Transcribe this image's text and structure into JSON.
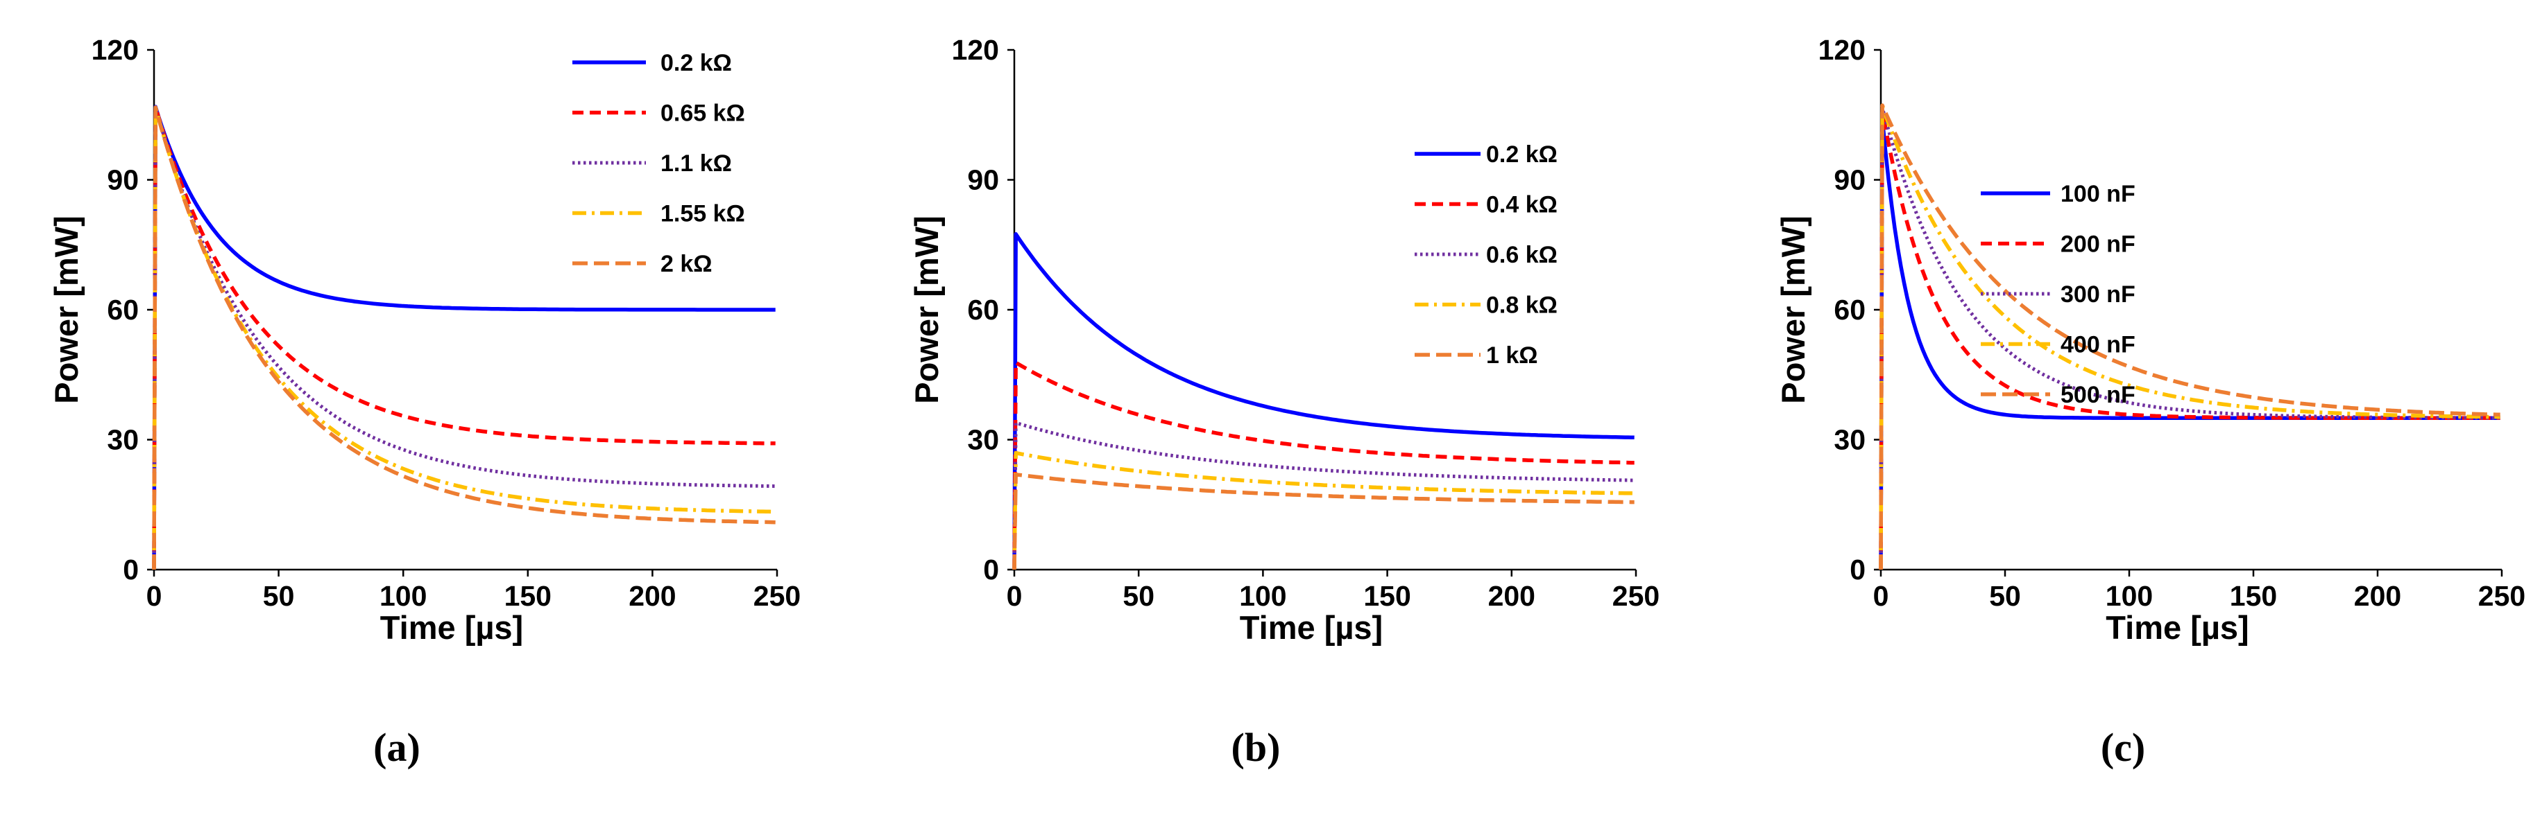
{
  "chart_data": [
    {
      "type": "line",
      "panel_label": "(a)",
      "xlabel": "Time  [µs]",
      "ylabel": "Power [mW]",
      "xlim": [
        0,
        250
      ],
      "ylim": [
        0,
        120
      ],
      "xticks": [
        "0",
        "50",
        "100",
        "150",
        "200",
        "250"
      ],
      "yticks": [
        "0",
        "30",
        "60",
        "90",
        "120"
      ],
      "grid": false,
      "legend_position": "top-right",
      "curve_model": "exponential decay from start to final with time constant tau (µs)",
      "series": [
        {
          "name": "0.2 kΩ",
          "start": 108,
          "final": 60,
          "tau": 25,
          "color": "#0000ff",
          "style": "solid"
        },
        {
          "name": "0.65 kΩ",
          "start": 108,
          "final": 29,
          "tau": 40,
          "color": "#ff0000",
          "style": "dash"
        },
        {
          "name": "1.1 kΩ",
          "start": 108,
          "final": 19,
          "tau": 43,
          "color": "#7030a0",
          "style": "dot"
        },
        {
          "name": "1.55 kΩ",
          "start": 108,
          "final": 13,
          "tau": 45,
          "color": "#ffc000",
          "style": "dashdot"
        },
        {
          "name": "2 kΩ",
          "start": 108,
          "final": 10.5,
          "tau": 46,
          "color": "#ed7d31",
          "style": "longdash"
        }
      ]
    },
    {
      "type": "line",
      "panel_label": "(b)",
      "xlabel": "Time  [µs]",
      "ylabel": "Power [mW]",
      "xlim": [
        0,
        250
      ],
      "ylim": [
        0,
        120
      ],
      "xticks": [
        "0",
        "50",
        "100",
        "150",
        "200",
        "250"
      ],
      "yticks": [
        "0",
        "30",
        "60",
        "90",
        "120"
      ],
      "grid": false,
      "legend_position": "top-right",
      "curve_model": "exponential decay from start to final with time constant tau (µs)",
      "series": [
        {
          "name": "0.2 kΩ",
          "start": 78,
          "final": 30,
          "tau": 55,
          "color": "#0000ff",
          "style": "solid"
        },
        {
          "name": "0.4 kΩ",
          "start": 48,
          "final": 24,
          "tau": 70,
          "color": "#ff0000",
          "style": "dash"
        },
        {
          "name": "0.6 kΩ",
          "start": 34,
          "final": 20,
          "tau": 80,
          "color": "#7030a0",
          "style": "dot"
        },
        {
          "name": "0.8 kΩ",
          "start": 27,
          "final": 17,
          "tau": 90,
          "color": "#ffc000",
          "style": "dashdot"
        },
        {
          "name": "1 kΩ",
          "start": 22,
          "final": 15,
          "tau": 100,
          "color": "#ed7d31",
          "style": "longdash"
        }
      ]
    },
    {
      "type": "line",
      "panel_label": "(c)",
      "xlabel": "Time  [µs]",
      "ylabel": "Power [mW]",
      "xlim": [
        0,
        250
      ],
      "ylim": [
        0,
        120
      ],
      "xticks": [
        "0",
        "50",
        "100",
        "150",
        "200",
        "250"
      ],
      "yticks": [
        "0",
        "30",
        "60",
        "90",
        "120"
      ],
      "grid": false,
      "legend_position": "center-right",
      "curve_model": "exponential decay from start to final with time constant tau (µs)",
      "series": [
        {
          "name": "100 nF",
          "start": 108,
          "final": 35,
          "tau": 11,
          "color": "#0000ff",
          "style": "solid"
        },
        {
          "name": "200 nF",
          "start": 108,
          "final": 35,
          "tau": 22,
          "color": "#ff0000",
          "style": "dash"
        },
        {
          "name": "300 nF",
          "start": 108,
          "final": 35,
          "tau": 33,
          "color": "#7030a0",
          "style": "dot"
        },
        {
          "name": "400 nF",
          "start": 108,
          "final": 35,
          "tau": 44,
          "color": "#ffc000",
          "style": "dashdot"
        },
        {
          "name": "500 nF",
          "start": 108,
          "final": 35,
          "tau": 55,
          "color": "#ed7d31",
          "style": "longdash"
        }
      ]
    }
  ]
}
